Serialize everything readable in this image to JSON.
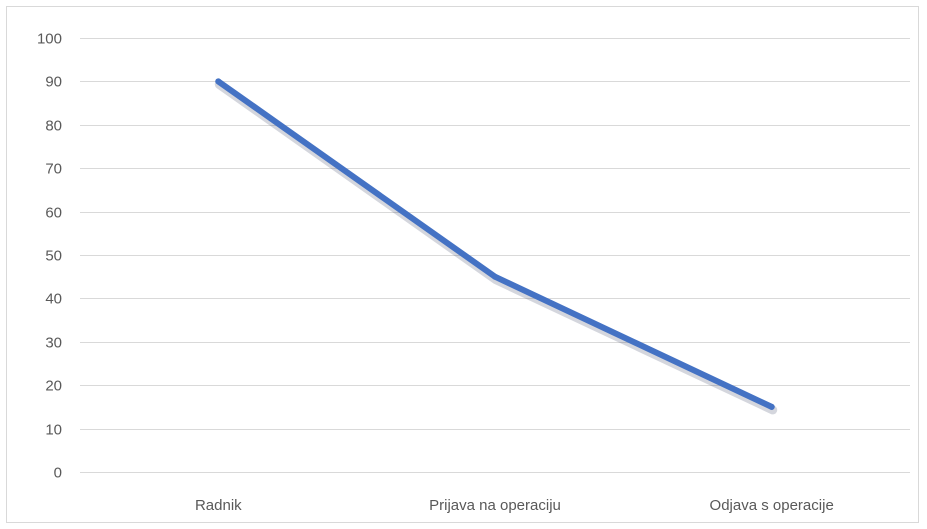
{
  "chart_data": {
    "type": "line",
    "title": "",
    "xlabel": "",
    "ylabel": "",
    "categories": [
      "Radnik",
      "Prijava na operaciju",
      "Odjava s operacije"
    ],
    "series": [
      {
        "values": [
          90,
          45,
          15
        ],
        "color": "#4472c4"
      }
    ],
    "ylim": [
      0,
      100
    ],
    "yticks": [
      "0",
      "10",
      "20",
      "30",
      "40",
      "50",
      "60",
      "70",
      "80",
      "90",
      "100"
    ],
    "grid": true,
    "legend": "none"
  }
}
